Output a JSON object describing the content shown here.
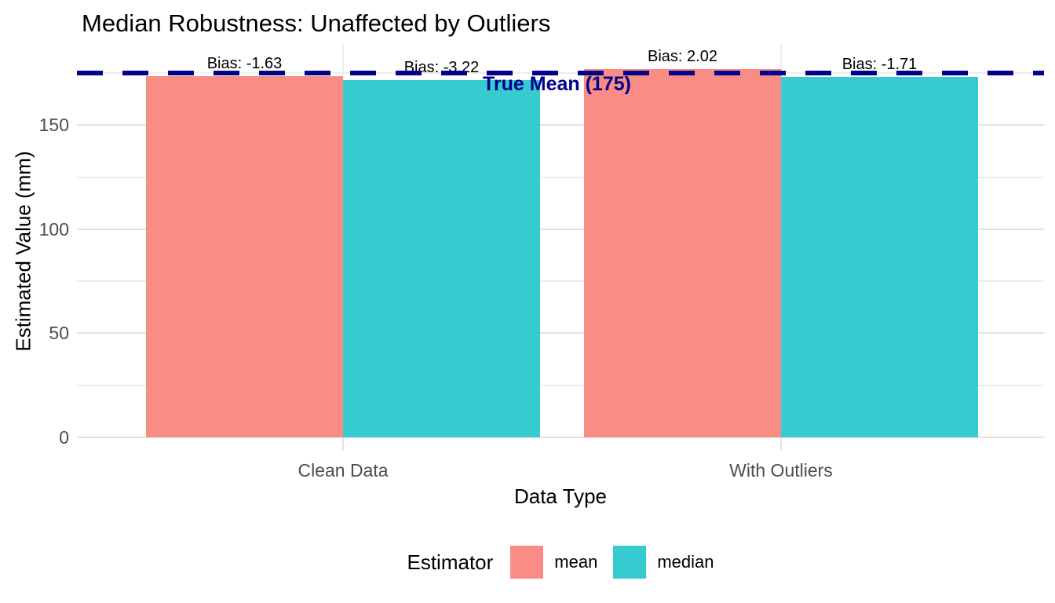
{
  "title": "Median Robustness: Unaffected by Outliers",
  "chart_data": {
    "type": "bar",
    "categories": [
      "Clean Data",
      "With Outliers"
    ],
    "series": [
      {
        "name": "mean",
        "color": "#F98C85",
        "values": [
          173.37,
          177.02
        ],
        "bar_labels": [
          "Bias: -1.63",
          "Bias: 2.02"
        ]
      },
      {
        "name": "median",
        "color": "#35CBCF",
        "values": [
          171.78,
          173.29
        ],
        "bar_labels": [
          "Bias: -3.22",
          "Bias: -1.71"
        ]
      }
    ],
    "xlabel": "Data Type",
    "ylabel": "Estimated Value (mm)",
    "ylim": [
      0,
      189
    ],
    "yticks": [
      0,
      50,
      100,
      150
    ],
    "minor_gridlines": [
      25,
      75,
      125,
      175
    ],
    "grid": "horizontal major+minor, vertical line at each category",
    "reference_line": {
      "value": 175,
      "label": "True Mean (175)",
      "color": "#00008B",
      "style": "dashed"
    },
    "legend": {
      "title": "Estimator",
      "position": "bottom",
      "entries": [
        "mean",
        "median"
      ]
    },
    "colors": {
      "gridline_major": "#E2E2E2",
      "gridline_minor": "#EDEDED",
      "axis_text": "#4D4D4D",
      "tick_mark": "#E2E2E2",
      "text": "#000000"
    }
  }
}
